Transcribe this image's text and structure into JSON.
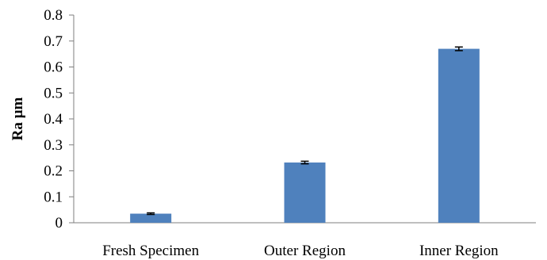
{
  "chart_data": {
    "type": "bar",
    "title": "",
    "xlabel": "",
    "ylabel": "Ra µm",
    "categories": [
      "Fresh Specimen",
      "Outer Region",
      "Inner Region"
    ],
    "values": [
      0.035,
      0.232,
      0.67
    ],
    "error": [
      0.003,
      0.005,
      0.007
    ],
    "ylim": [
      0,
      0.8
    ],
    "yticks": [
      "0",
      "0.1",
      "0.2",
      "0.3",
      "0.4",
      "0.5",
      "0.6",
      "0.7",
      "0.8"
    ],
    "grid": false,
    "legend": "none",
    "bar_color": "#4F81BD",
    "axis_color": "#7F7F7F"
  }
}
